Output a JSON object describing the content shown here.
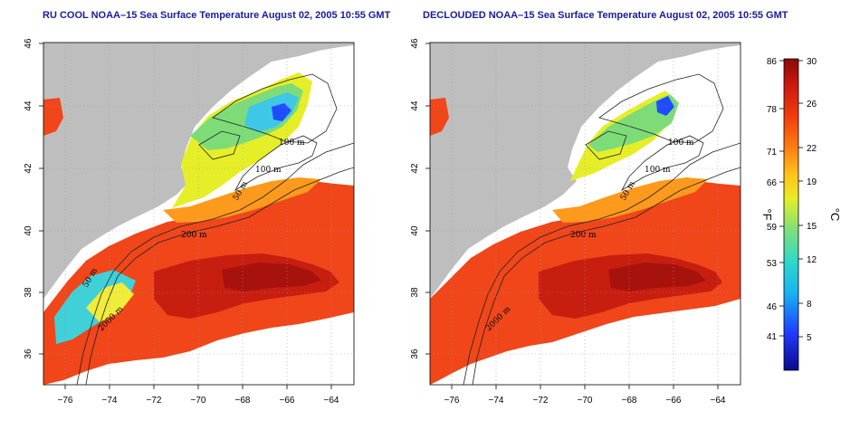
{
  "panels": [
    {
      "title": "RU COOL NOAA–15 Sea Surface Temperature August 02, 2005 10:55 GMT",
      "contour_labels": [
        "100 m",
        "100 m",
        "50 m",
        "200 m",
        "50 m",
        "2000 m"
      ]
    },
    {
      "title": "DECLOUDED NOAA–15 Sea Surface Temperature August 02, 2005 10:55 GMT",
      "contour_labels": [
        "100 m",
        "100 m",
        "50 m",
        "200 m",
        "2000 m"
      ]
    }
  ],
  "axes": {
    "x_ticks": [
      "−76",
      "−74",
      "−72",
      "−70",
      "−68",
      "−66",
      "−64"
    ],
    "y_ticks": [
      "36",
      "38",
      "40",
      "42",
      "44",
      "46"
    ]
  },
  "colorbar": {
    "fahrenheit_ticks": [
      "86",
      "78",
      "71",
      "66",
      "59",
      "53",
      "46",
      "41"
    ],
    "celsius_ticks": [
      "30",
      "26",
      "22",
      "19",
      "15",
      "12",
      "8",
      "5"
    ],
    "fahrenheit_unit": "°F",
    "celsius_unit": "°C"
  },
  "colors": {
    "land": "#bebebe",
    "cloud": "#ffffff",
    "title": "#1a1a9e"
  }
}
